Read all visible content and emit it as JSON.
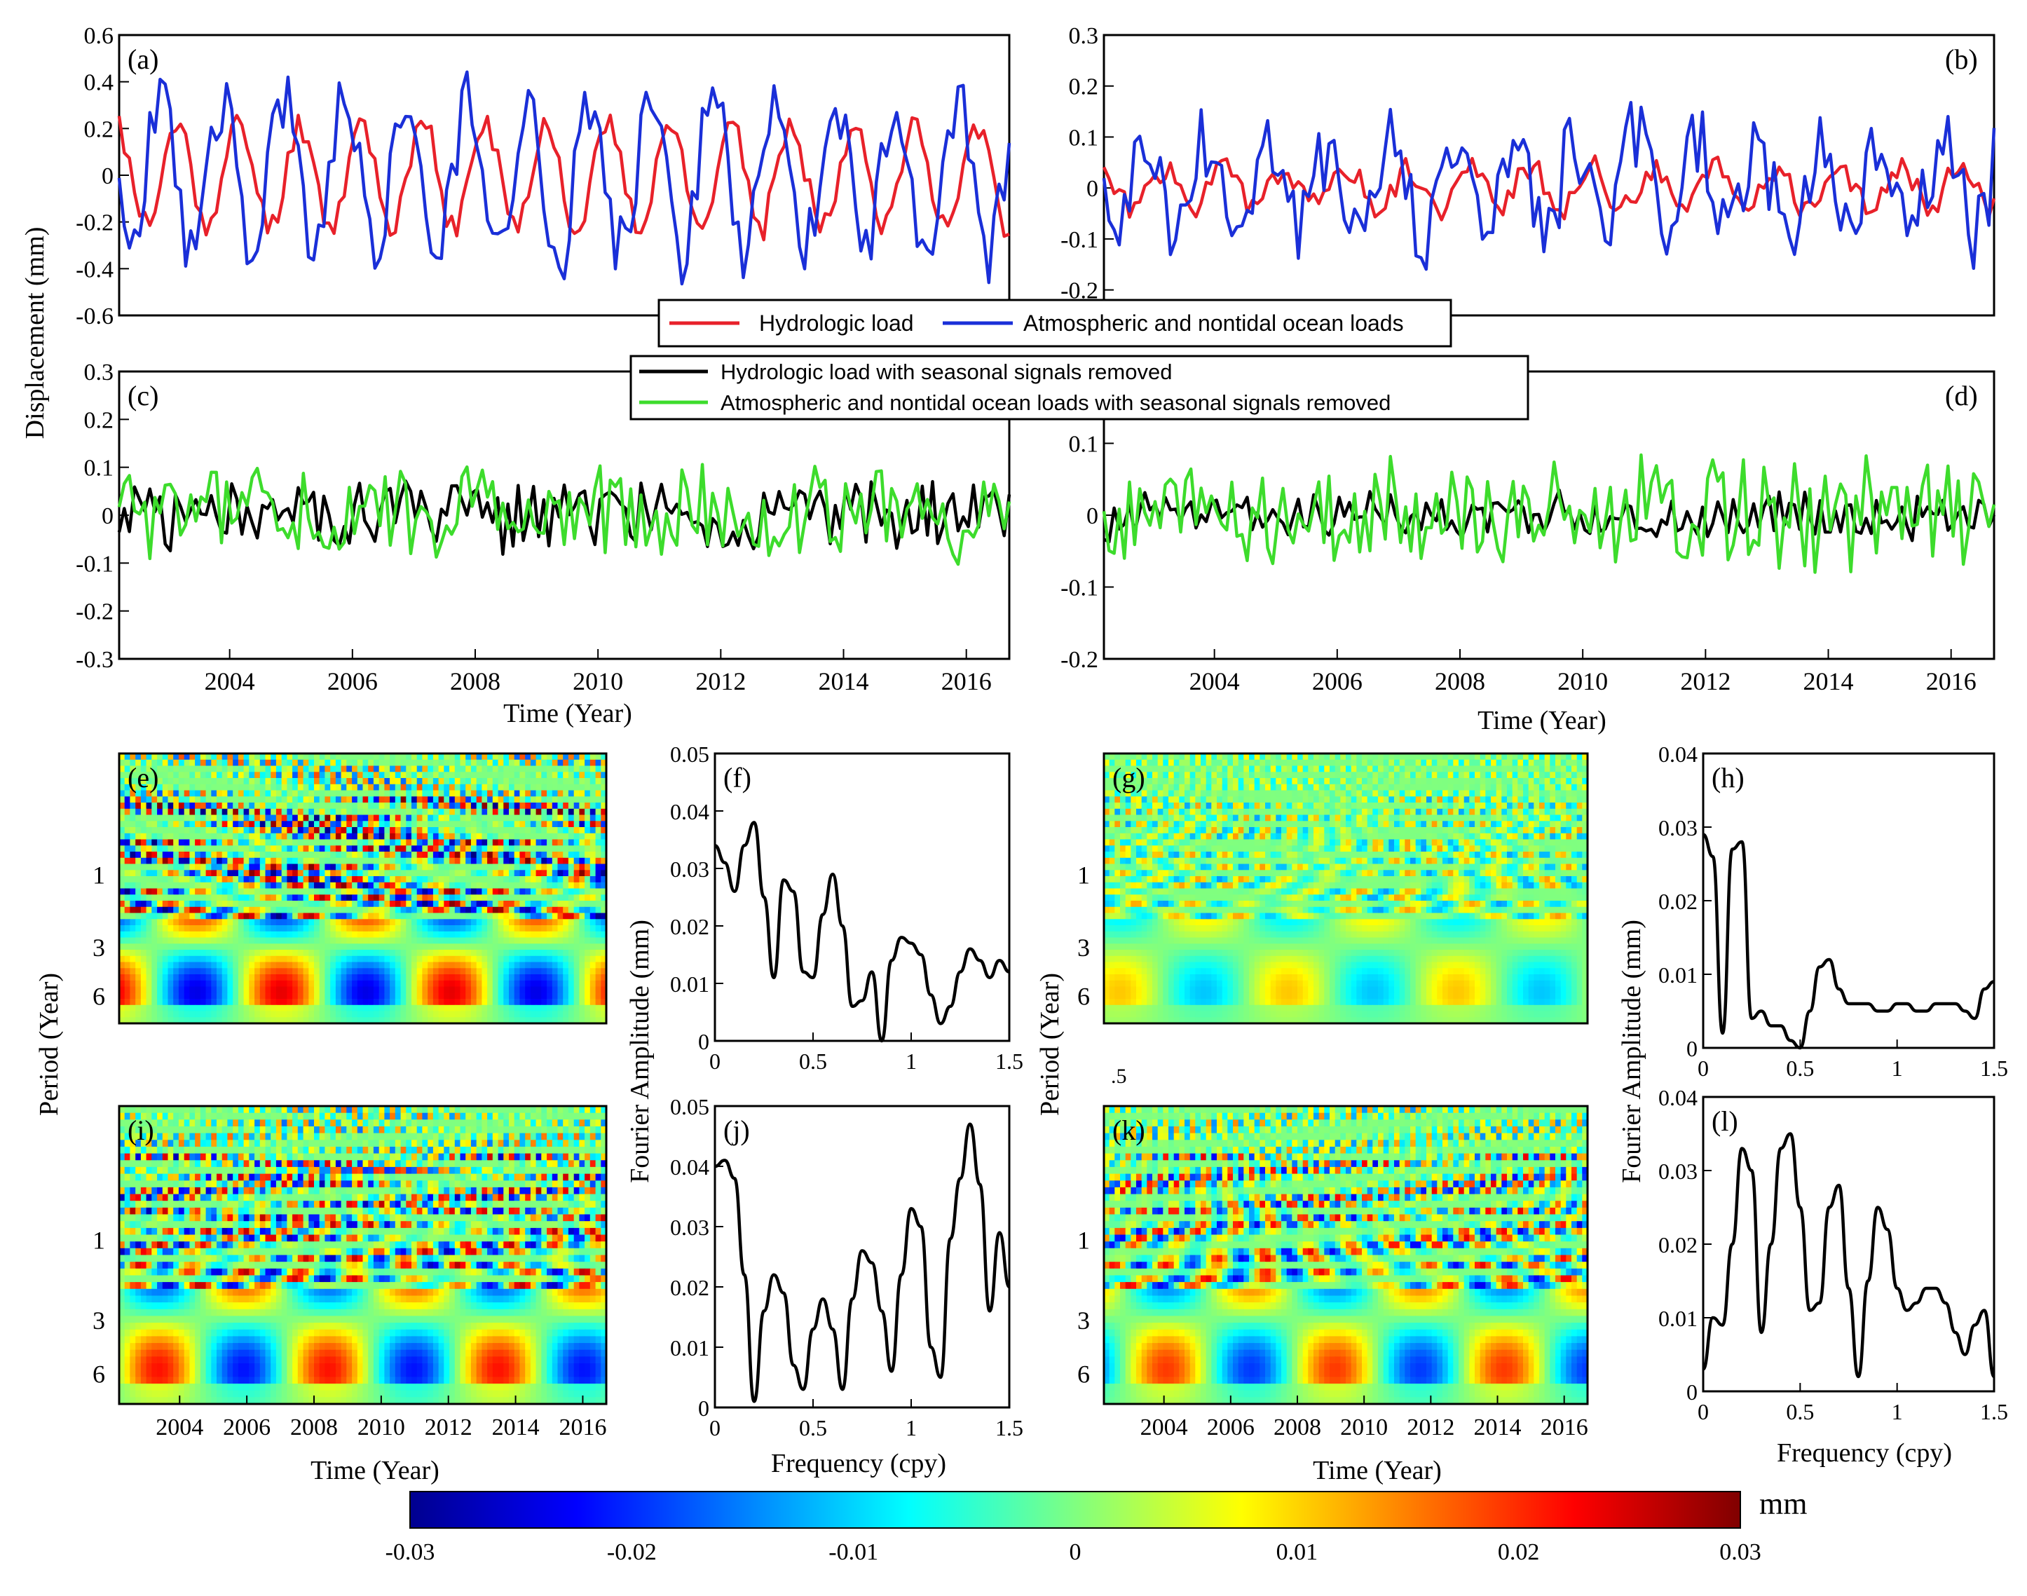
{
  "figure": {
    "ylabel_displacement": "Displacement (mm)",
    "ylabel_period": "Period (Year)",
    "ylabel_fourier": "Fourier Amplitude (mm)",
    "time_label": "Time (Year)",
    "freq_label": "Frequency (cpy)",
    "colorbar_unit": "mm",
    "colors": {
      "hydro": "#e8212a",
      "atmo": "#1a2fd8",
      "hydro_resid": "#000000",
      "atmo_resid": "#3ddc2c"
    }
  },
  "legend_top": {
    "items": [
      "Hydrologic load",
      "Atmospheric and nontidal ocean loads"
    ]
  },
  "legend_mid": {
    "items": [
      "Hydrologic load with seasonal signals removed",
      "Atmospheric and nontidal ocean loads with seasonal signals removed"
    ]
  },
  "chart_data": [
    {
      "id": "a",
      "type": "line",
      "panel_label": "(a)",
      "xlim": [
        2002.2,
        2016.7
      ],
      "ylim": [
        -0.6,
        0.6
      ],
      "yticks": [
        -0.6,
        -0.4,
        -0.2,
        0,
        0.2,
        0.4,
        0.6
      ],
      "ytick_labels": [
        "-0.6",
        "-0.4",
        "-0.2",
        "0",
        "0.2",
        "0.4",
        "0.6"
      ],
      "series": [
        {
          "name": "Hydrologic load",
          "color": "#e8212a",
          "amp": 0.22,
          "noise": 0.06,
          "phase": 0.6,
          "seed": 11
        },
        {
          "name": "Atmospheric and nontidal ocean loads",
          "color": "#1a2fd8",
          "amp": 0.32,
          "noise": 0.14,
          "phase": 2.4,
          "seed": 23
        }
      ]
    },
    {
      "id": "b",
      "type": "line",
      "panel_label": "(b)",
      "xlim": [
        2002.2,
        2016.7
      ],
      "ylim": [
        -0.25,
        0.3
      ],
      "yticks": [
        -0.2,
        -0.1,
        0,
        0.1,
        0.2,
        0.3
      ],
      "ytick_labels": [
        "-0.2",
        "-0.1",
        "0",
        "0.1",
        "0.2",
        "0.3"
      ],
      "series": [
        {
          "name": "Hydrologic load",
          "color": "#e8212a",
          "amp": 0.04,
          "noise": 0.025,
          "phase": 0.6,
          "seed": 31
        },
        {
          "name": "Atmospheric and nontidal ocean loads",
          "color": "#1a2fd8",
          "amp": 0.09,
          "noise": 0.08,
          "phase": 2.4,
          "seed": 41
        }
      ]
    },
    {
      "id": "c",
      "type": "line",
      "panel_label": "(c)",
      "xlim": [
        2002.2,
        2016.7
      ],
      "ylim": [
        -0.3,
        0.3
      ],
      "yticks": [
        -0.3,
        -0.2,
        -0.1,
        0,
        0.1,
        0.2,
        0.3
      ],
      "ytick_labels": [
        "-0.3",
        "-0.2",
        "-0.1",
        "0",
        "0.1",
        "0.2",
        "0.3"
      ],
      "xticks": [
        2004,
        2006,
        2008,
        2010,
        2012,
        2014,
        2016
      ],
      "xtick_labels": [
        "2004",
        "2006",
        "2008",
        "2010",
        "2012",
        "2014",
        "2016"
      ],
      "series": [
        {
          "name": "Hydrologic load with seasonal signals removed",
          "color": "#000000",
          "amp": 0.0,
          "noise": 0.07,
          "phase": 0,
          "seed": 51
        },
        {
          "name": "Atmospheric and nontidal ocean loads with seasonal signals removed",
          "color": "#3ddc2c",
          "amp": 0.0,
          "noise": 0.09,
          "phase": 0,
          "seed": 61
        }
      ]
    },
    {
      "id": "d",
      "type": "line",
      "panel_label": "(d)",
      "xlim": [
        2002.2,
        2016.7
      ],
      "ylim": [
        -0.2,
        0.2
      ],
      "yticks": [
        -0.2,
        -0.1,
        0,
        0.1
      ],
      "ytick_labels": [
        "-0.2",
        "-0.1",
        "0",
        "0.1"
      ],
      "xticks": [
        2004,
        2006,
        2008,
        2010,
        2012,
        2014,
        2016
      ],
      "xtick_labels": [
        "2004",
        "2006",
        "2008",
        "2010",
        "2012",
        "2014",
        "2016"
      ],
      "series": [
        {
          "name": "Hydrologic load with seasonal signals removed",
          "color": "#000000",
          "amp": 0.0,
          "noise": 0.03,
          "phase": 0,
          "seed": 71
        },
        {
          "name": "Atmospheric and nontidal ocean loads with seasonal signals removed",
          "color": "#3ddc2c",
          "amp": 0.0,
          "noise": 0.07,
          "phase": 0,
          "seed": 81
        }
      ]
    },
    {
      "id": "e",
      "type": "heatmap",
      "panel_label": "(e)",
      "period_ticks": [
        "1",
        "3",
        "6"
      ],
      "seed": 5,
      "strength": 1.0
    },
    {
      "id": "g",
      "type": "heatmap",
      "panel_label": "(g)",
      "period_ticks": [
        "1",
        "3",
        "6"
      ],
      "seed": 9,
      "strength": 0.45
    },
    {
      "id": "i",
      "type": "heatmap",
      "panel_label": "(i)",
      "period_ticks": [
        "1",
        "3",
        "6"
      ],
      "seed": 13,
      "strength": 0.9,
      "xtick_labels": [
        "2004",
        "2006",
        "2008",
        "2010",
        "2012",
        "2014",
        "2016"
      ]
    },
    {
      "id": "k",
      "type": "heatmap",
      "panel_label": "(k)",
      "period_ticks": [
        "1",
        "3",
        "6"
      ],
      "seed": 17,
      "strength": 0.8,
      "xtick_labels": [
        "2004",
        "2006",
        "2008",
        "2010",
        "2012",
        "2014",
        "2016"
      ]
    },
    {
      "id": "f",
      "type": "line",
      "panel_label": "(f)",
      "xlim": [
        0,
        1.5
      ],
      "ylim": [
        0,
        0.05
      ],
      "yticks": [
        0,
        0.01,
        0.02,
        0.03,
        0.04,
        0.05
      ],
      "ytick_labels": [
        "0",
        "0.01",
        "0.02",
        "0.03",
        "0.04",
        "0.05"
      ],
      "xticks": [
        0,
        0.5,
        1,
        1.5
      ],
      "xtick_labels": [
        "0",
        "0.5",
        "1",
        "1.5"
      ],
      "x": [
        0,
        0.05,
        0.1,
        0.15,
        0.2,
        0.25,
        0.3,
        0.35,
        0.4,
        0.45,
        0.5,
        0.55,
        0.6,
        0.65,
        0.7,
        0.75,
        0.8,
        0.85,
        0.9,
        0.95,
        1.0,
        1.05,
        1.1,
        1.15,
        1.2,
        1.25,
        1.3,
        1.35,
        1.4,
        1.45,
        1.5
      ],
      "y": [
        0.034,
        0.031,
        0.026,
        0.034,
        0.038,
        0.025,
        0.011,
        0.028,
        0.026,
        0.012,
        0.011,
        0.022,
        0.029,
        0.02,
        0.006,
        0.007,
        0.012,
        0.0,
        0.014,
        0.018,
        0.017,
        0.015,
        0.008,
        0.003,
        0.006,
        0.012,
        0.016,
        0.014,
        0.011,
        0.014,
        0.012
      ]
    },
    {
      "id": "h",
      "type": "line",
      "panel_label": "(h)",
      "xlim": [
        0,
        1.5
      ],
      "ylim": [
        0,
        0.04
      ],
      "yticks": [
        0,
        0.01,
        0.02,
        0.03,
        0.04
      ],
      "ytick_labels": [
        "0",
        "0.01",
        "0.02",
        "0.03",
        "0.04"
      ],
      "xticks": [
        0,
        0.5,
        1,
        1.5
      ],
      "xtick_labels": [
        "0",
        "0.5",
        "1",
        "1.5"
      ],
      "x": [
        0,
        0.05,
        0.1,
        0.15,
        0.2,
        0.25,
        0.3,
        0.35,
        0.4,
        0.45,
        0.5,
        0.55,
        0.6,
        0.65,
        0.7,
        0.75,
        0.8,
        0.85,
        0.9,
        0.95,
        1.0,
        1.05,
        1.1,
        1.15,
        1.2,
        1.25,
        1.3,
        1.35,
        1.4,
        1.45,
        1.5
      ],
      "y": [
        0.029,
        0.026,
        0.002,
        0.027,
        0.028,
        0.004,
        0.005,
        0.003,
        0.003,
        0.001,
        0.0,
        0.005,
        0.011,
        0.012,
        0.008,
        0.006,
        0.006,
        0.006,
        0.005,
        0.005,
        0.006,
        0.006,
        0.005,
        0.005,
        0.006,
        0.006,
        0.006,
        0.005,
        0.004,
        0.008,
        0.009
      ]
    },
    {
      "id": "j",
      "type": "line",
      "panel_label": "(j)",
      "xlim": [
        0,
        1.5
      ],
      "ylim": [
        0,
        0.05
      ],
      "yticks": [
        0,
        0.01,
        0.02,
        0.03,
        0.04,
        0.05
      ],
      "ytick_labels": [
        "0",
        "0.01",
        "0.02",
        "0.03",
        "0.04",
        "0.05"
      ],
      "xticks": [
        0,
        0.5,
        1,
        1.5
      ],
      "xtick_labels": [
        "0",
        "0.5",
        "1",
        "1.5"
      ],
      "xlabel": "Frequency (cpy)",
      "x": [
        0,
        0.05,
        0.1,
        0.15,
        0.2,
        0.25,
        0.3,
        0.35,
        0.4,
        0.45,
        0.5,
        0.55,
        0.6,
        0.65,
        0.7,
        0.75,
        0.8,
        0.85,
        0.9,
        0.95,
        1.0,
        1.05,
        1.1,
        1.15,
        1.2,
        1.25,
        1.3,
        1.35,
        1.4,
        1.45,
        1.5
      ],
      "y": [
        0.04,
        0.041,
        0.038,
        0.022,
        0.001,
        0.016,
        0.022,
        0.019,
        0.007,
        0.003,
        0.013,
        0.018,
        0.013,
        0.003,
        0.018,
        0.026,
        0.024,
        0.016,
        0.006,
        0.022,
        0.033,
        0.03,
        0.01,
        0.005,
        0.028,
        0.038,
        0.047,
        0.037,
        0.016,
        0.029,
        0.02
      ]
    },
    {
      "id": "l",
      "type": "line",
      "panel_label": "(l)",
      "xlim": [
        0,
        1.5
      ],
      "ylim": [
        0,
        0.04
      ],
      "yticks": [
        0,
        0.01,
        0.02,
        0.03,
        0.04
      ],
      "ytick_labels": [
        "0",
        "0.01",
        "0.02",
        "0.03",
        "0.04"
      ],
      "xticks": [
        0,
        0.5,
        1,
        1.5
      ],
      "xtick_labels": [
        "0",
        "0.5",
        "1",
        "1.5"
      ],
      "xlabel": "Frequency (cpy)",
      "x": [
        0,
        0.05,
        0.1,
        0.15,
        0.2,
        0.25,
        0.3,
        0.35,
        0.4,
        0.45,
        0.5,
        0.55,
        0.6,
        0.65,
        0.7,
        0.75,
        0.8,
        0.85,
        0.9,
        0.95,
        1.0,
        1.05,
        1.1,
        1.15,
        1.2,
        1.25,
        1.3,
        1.35,
        1.4,
        1.45,
        1.5
      ],
      "y": [
        0.003,
        0.01,
        0.009,
        0.02,
        0.033,
        0.03,
        0.008,
        0.02,
        0.033,
        0.035,
        0.025,
        0.011,
        0.012,
        0.025,
        0.028,
        0.014,
        0.002,
        0.015,
        0.025,
        0.022,
        0.014,
        0.011,
        0.012,
        0.014,
        0.014,
        0.012,
        0.008,
        0.005,
        0.009,
        0.011,
        0.002
      ]
    },
    {
      "id": "colorbar",
      "type": "heatmap",
      "cmin": -0.03,
      "cmax": 0.03,
      "ticks": [
        -0.03,
        -0.02,
        -0.01,
        0,
        0.01,
        0.02,
        0.03
      ],
      "tick_labels": [
        "-0.03",
        "-0.02",
        "-0.01",
        "0",
        "0.01",
        "0.02",
        "0.03"
      ],
      "unit": "mm"
    }
  ],
  "stray_labels": {
    "g_bottom_left": ".5"
  }
}
